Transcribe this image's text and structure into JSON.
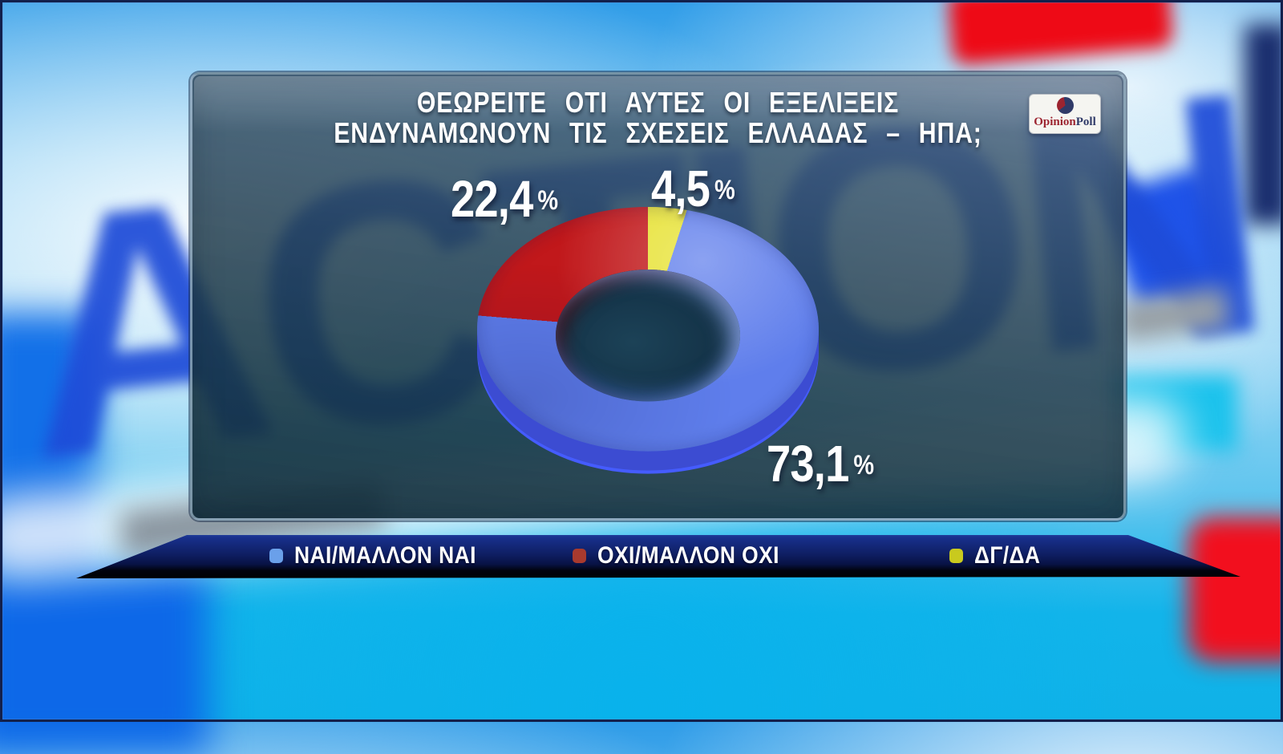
{
  "background": {
    "watermark_text": "ACTION"
  },
  "panel": {
    "title_line1": "ΘΕΩΡΕΙΤΕ ΟΤΙ ΑΥΤΕΣ ΟΙ ΕΞΕΛΙΞΕΙΣ",
    "title_line2": "ΕΝΔΥΝΑΜΩΝΟΥΝ ΤΙΣ ΣΧΕΣΕΙΣ ΕΛΛΑΔΑΣ – ΗΠΑ;"
  },
  "logo": {
    "text_opinion": "Opinion",
    "text_poll": "Poll",
    "accent_red": "#9c2430",
    "accent_navy": "#2f3a68"
  },
  "chart_data": {
    "type": "pie",
    "subtype": "3d-donut",
    "title": "ΘΕΩΡΕΙΤΕ ΟΤΙ ΑΥΤΕΣ ΟΙ ΕΞΕΛΙΞΕΙΣ ΕΝΔΥΝΑΜΩΝΟΥΝ ΤΙΣ ΣΧΕΣΕΙΣ ΕΛΛΑΔΑΣ – ΗΠΑ;",
    "unit": "%",
    "decimal_style": "comma",
    "percent_sign": "%",
    "legend_position": "bottom",
    "start_angle_deg": -3,
    "draw_order_from_top": [
      2,
      0,
      1
    ],
    "slices": [
      {
        "label": "ΝΑΙ/ΜΑΛΛΟΝ ΝΑΙ",
        "value": 73.1,
        "display": "73,1",
        "color": "#5f7eec",
        "side_color": "#3c4cd2",
        "legend_color": "#6aa0ea"
      },
      {
        "label": "ΟΧΙ/ΜΑΛΛΟΝ ΟΧΙ",
        "value": 22.4,
        "display": "22,4",
        "color": "#c1181b",
        "side_color": "#8d1014",
        "legend_color": "#a83a2e"
      },
      {
        "label": "ΔΓ/ΔΑ",
        "value": 4.5,
        "display": "4,5",
        "color": "#e7e232",
        "side_color": "#b9b118",
        "legend_color": "#c9ca1e"
      }
    ]
  }
}
